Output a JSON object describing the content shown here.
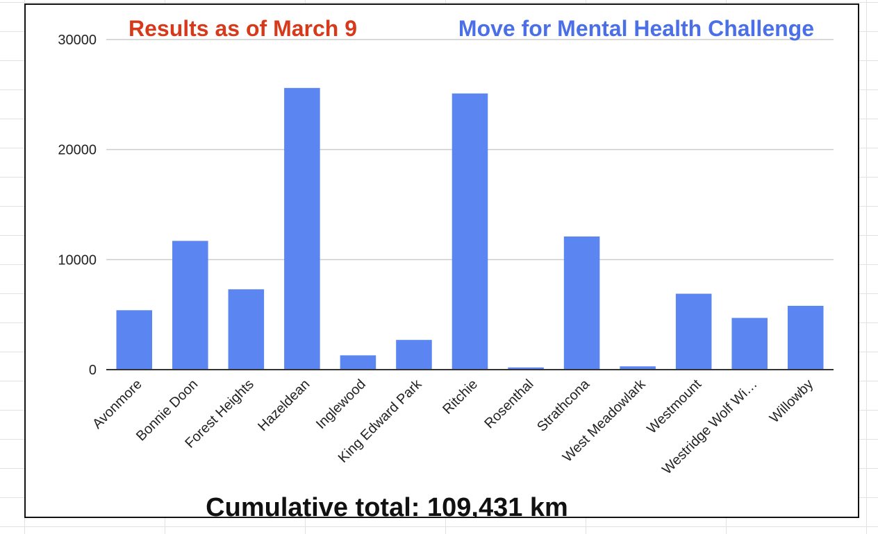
{
  "colors": {
    "title_left": "#d7391b",
    "title_right": "#4a6fe6",
    "bar": "#5b85f0",
    "gridline": "#cccccc",
    "axis": "#333333"
  },
  "chart_data": {
    "type": "bar",
    "title": "Results as of March 9",
    "subtitle": "Move for Mental Health Challenge",
    "footer": "Cumulative total: 109,431 km",
    "xlabel": "",
    "ylabel": "",
    "ylim": [
      0,
      30000
    ],
    "yticks": [
      0,
      10000,
      20000,
      30000
    ],
    "grid": true,
    "legend": "none",
    "categories": [
      "Avonmore",
      "Bonnie Doon",
      "Forest Heights",
      "Hazeldean",
      "Inglewood",
      "King Edward Park",
      "Ritchie",
      "Rosenthal",
      "Strathcona",
      "West Meadowlark",
      "Westmount",
      "Westridge Wolf Wi…",
      "Willowby"
    ],
    "values": [
      5400,
      11700,
      7300,
      25600,
      1300,
      2700,
      25100,
      200,
      12100,
      300,
      6900,
      4700,
      5800
    ]
  }
}
